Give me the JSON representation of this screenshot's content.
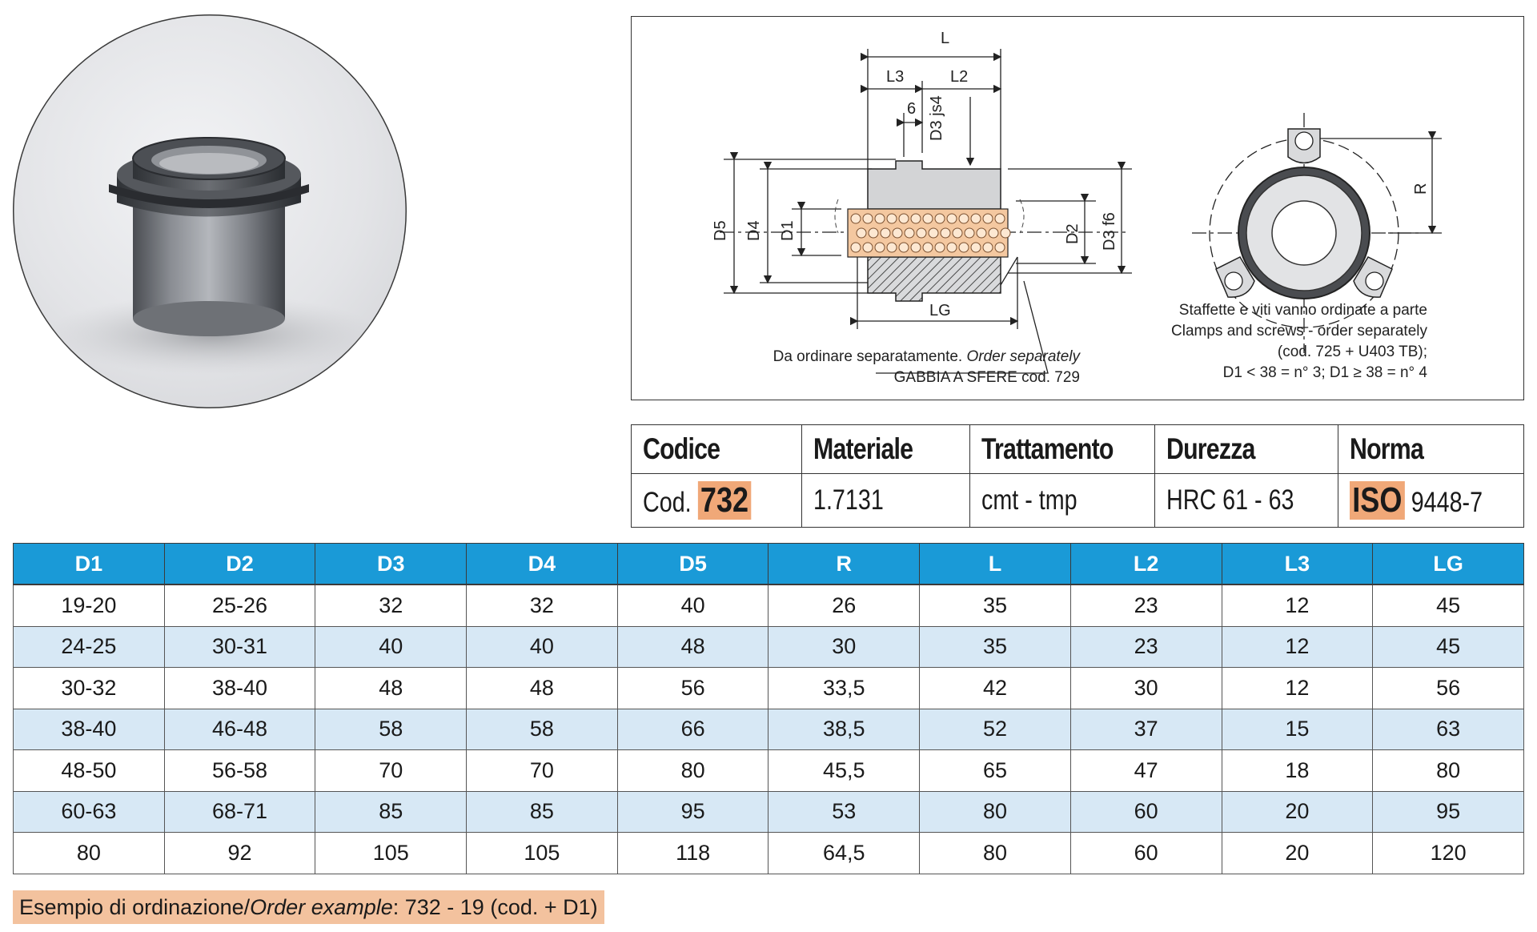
{
  "drawing": {
    "dim_labels": {
      "L": "L",
      "L3": "L3",
      "L2": "L2",
      "six": "6",
      "D3js4": "D3 js4",
      "D5": "D5",
      "D4": "D4",
      "D1": "D1",
      "D2": "D2",
      "D3f6": "D3 f6",
      "LG": "LG",
      "R": "R"
    },
    "note_left_line1_plain": "Da ordinare separatamente.",
    "note_left_line1_italic": "Order separately",
    "note_left_line2": "GABBIA A SFERE cod. 729",
    "note_right": [
      "Staffette e viti vanno ordinate a parte",
      "Clamps and screws - order separately",
      "(cod. 725 + U403 TB);",
      "D1 < 38 = n° 3; D1 ≥ 38 = n° 4"
    ]
  },
  "spec": {
    "headers": [
      "Codice",
      "Materiale",
      "Trattamento",
      "Durezza",
      "Norma"
    ],
    "code_prefix": "Cod.",
    "code_value": "732",
    "material": "1.7131",
    "treatment": "cmt - tmp",
    "hardness": "HRC 61 - 63",
    "norm_badge": "ISO",
    "norm_value": "9448-7"
  },
  "dims": {
    "columns": [
      "D1",
      "D2",
      "D3",
      "D4",
      "D5",
      "R",
      "L",
      "L2",
      "L3",
      "LG"
    ],
    "rows": [
      [
        "19-20",
        "25-26",
        "32",
        "32",
        "40",
        "26",
        "35",
        "23",
        "12",
        "45"
      ],
      [
        "24-25",
        "30-31",
        "40",
        "40",
        "48",
        "30",
        "35",
        "23",
        "12",
        "45"
      ],
      [
        "30-32",
        "38-40",
        "48",
        "48",
        "56",
        "33,5",
        "42",
        "30",
        "12",
        "56"
      ],
      [
        "38-40",
        "46-48",
        "58",
        "58",
        "66",
        "38,5",
        "52",
        "37",
        "15",
        "63"
      ],
      [
        "48-50",
        "56-58",
        "70",
        "70",
        "80",
        "45,5",
        "65",
        "47",
        "18",
        "80"
      ],
      [
        "60-63",
        "68-71",
        "85",
        "85",
        "95",
        "53",
        "80",
        "60",
        "20",
        "95"
      ],
      [
        "80",
        "92",
        "105",
        "105",
        "118",
        "64,5",
        "80",
        "60",
        "20",
        "120"
      ]
    ]
  },
  "example": {
    "prefix": "Esempio di ordinazione/",
    "italic": "Order example",
    "suffix": ": 732 - 19 (cod. + D1)"
  }
}
